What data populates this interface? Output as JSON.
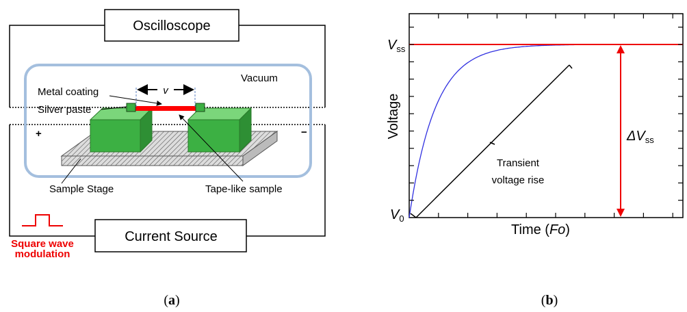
{
  "panel_a": {
    "oscilloscope": "Oscilloscope",
    "current_source": "Current Source",
    "vacuum": "Vacuum",
    "metal_coating": "Metal coating",
    "silver_paste": "Silver paste",
    "length_symbol": "v",
    "sample_stage": "Sample Stage",
    "tape_sample": "Tape-like sample",
    "plus": "+",
    "minus": "−",
    "modulation": [
      "Square wave",
      "modulation"
    ],
    "caption": {
      "open": "(",
      "letter": "a",
      "close": ")"
    }
  },
  "panel_b": {
    "y_label": "Voltage",
    "x_label": {
      "text": "Time (",
      "italic": "Fo",
      "end": ")"
    },
    "v_ss": {
      "main": "V",
      "sub": "ss"
    },
    "v_0": {
      "main": "V",
      "sub": "0"
    },
    "delta_v_ss": {
      "main": "ΔV",
      "sub": "ss"
    },
    "transient": [
      "Transient",
      "voltage rise"
    ],
    "caption": {
      "open": "(",
      "letter": "b",
      "close": ")"
    }
  }
}
